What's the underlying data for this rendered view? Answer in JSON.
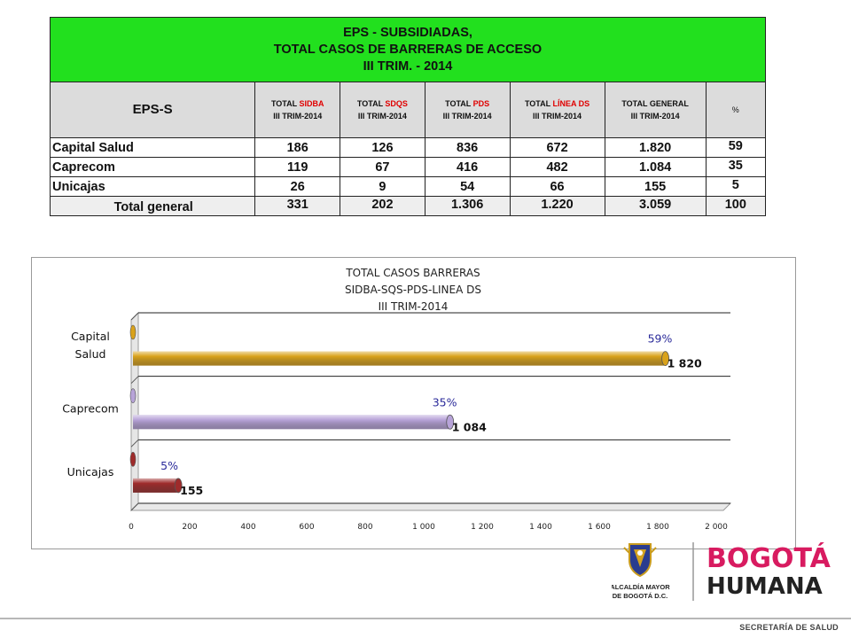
{
  "table": {
    "title_line1": "EPS - SUBSIDIADAS,",
    "title_line2": "TOTAL CASOS DE BARRERAS DE ACCESO",
    "title_line3": "III TRIM. - 2014",
    "col_eps": "EPS-S",
    "col_total_prefix": "TOTAL",
    "period": "III TRIM-2014",
    "col_sidba": "SIDBA",
    "col_sdqs": "SDQS",
    "col_pds": "PDS",
    "col_linea": "LÍNEA DS",
    "col_general": "TOTAL GENERAL",
    "col_pct": "%",
    "rows": [
      {
        "name": "Capital Salud",
        "sidba": "186",
        "sdqs": "126",
        "pds": "836",
        "linea": "672",
        "general": "1.820",
        "pct": "59"
      },
      {
        "name": "Caprecom",
        "sidba": "119",
        "sdqs": "67",
        "pds": "416",
        "linea": "482",
        "general": "1.084",
        "pct": "35"
      },
      {
        "name": "Unicajas",
        "sidba": "26",
        "sdqs": "9",
        "pds": "54",
        "linea": "66",
        "general": "155",
        "pct": "5"
      }
    ],
    "total": {
      "name": "Total general",
      "sidba": "331",
      "sdqs": "202",
      "pds": "1.306",
      "linea": "1.220",
      "general": "3.059",
      "pct": "100"
    }
  },
  "chart_data": {
    "type": "bar",
    "orientation": "horizontal",
    "title_lines": [
      "TOTAL CASOS BARRERAS",
      "SIDBA-SQS-PDS-LINEA DS",
      "III TRIM-2014"
    ],
    "categories": [
      "Capital Salud",
      "Caprecom",
      "Unicajas"
    ],
    "values": [
      1820,
      1084,
      155
    ],
    "value_labels": [
      "1 820",
      "1 084",
      "155"
    ],
    "percent_labels": [
      "59%",
      "35%",
      "5%"
    ],
    "bar_colors": [
      "#d9a21b",
      "#b7a3d8",
      "#9e2b2b"
    ],
    "xlim": [
      0,
      2000
    ],
    "xticks": [
      0,
      200,
      400,
      600,
      800,
      1000,
      1200,
      1400,
      1600,
      1800,
      2000
    ],
    "xtick_labels": [
      "0",
      "200",
      "400",
      "600",
      "800",
      "1 000",
      "1 200",
      "1 400",
      "1 600",
      "1 800",
      "2 000"
    ],
    "grid": true,
    "legend": "none"
  },
  "logos": {
    "alcaldia_line1": "ALCALDÍA MAYOR",
    "alcaldia_line2": "DE BOGOTÁ D.C.",
    "brand_line1": "BOGOTÁ",
    "brand_line2": "HUMANA"
  },
  "footer": {
    "text": "SECRETARÍA DE SALUD"
  }
}
